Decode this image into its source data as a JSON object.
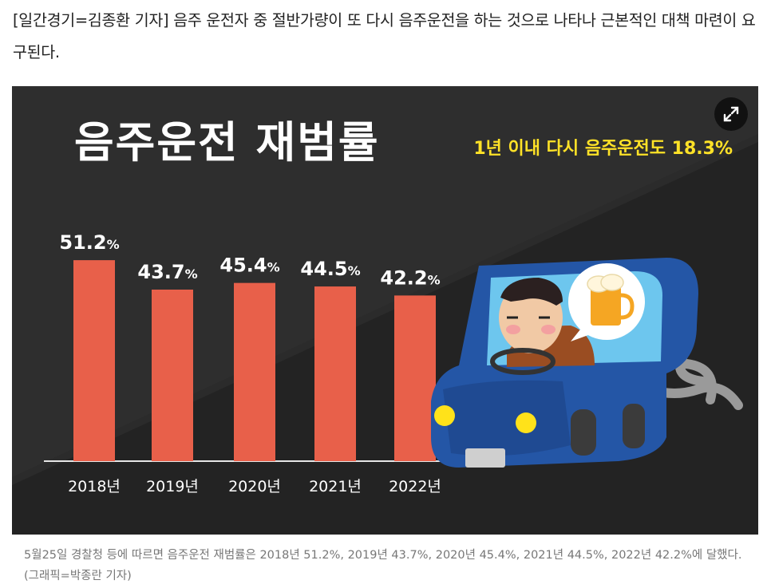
{
  "article": {
    "lead_text": "[일간경기=김종환 기자] 음주 운전자 중 절반가량이 또 다시 음주운전을 하는 것으로 나타나 근본적인 대책 마련이 요구된다.",
    "caption": "5월25일 경찰청 등에 따르면 음주운전 재범률은 2018년 51.2%, 2019년 43.7%, 2020년 45.4%, 2021년 44.5%, 2022년 42.2%에 달했다. (그래픽=박종란 기자)"
  },
  "figure": {
    "expand_icon": "expand-arrows-icon"
  },
  "chart_data": {
    "type": "bar",
    "title": "음주운전 재범률",
    "subtitle": "1년 이내 다시 음주운전도 18.3%",
    "categories": [
      "2018년",
      "2019년",
      "2020년",
      "2021년",
      "2022년"
    ],
    "values": [
      51.2,
      43.7,
      45.4,
      44.5,
      42.2
    ],
    "value_suffix": "%",
    "value_labels": [
      "51.2",
      "43.7",
      "45.4",
      "44.5",
      "42.2"
    ],
    "ylim": [
      0,
      55
    ],
    "grid": false,
    "bar_color": "#e8604a",
    "background_color": "#2b2b2b",
    "title_color": "#ffffff",
    "subtitle_color": "#ffe227"
  }
}
